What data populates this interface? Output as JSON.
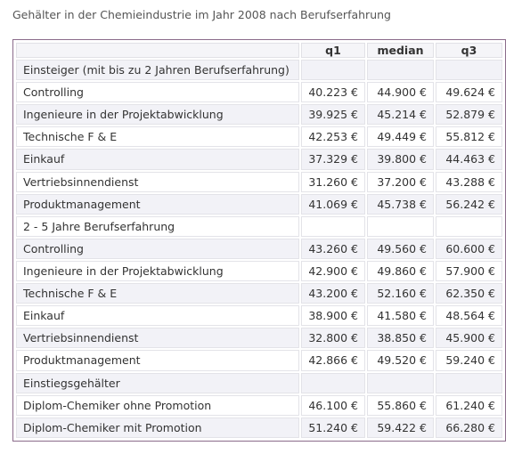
{
  "title": "Gehälter in der Chemieindustrie im Jahr 2008 nach Berufserfahrung",
  "columns": [
    "",
    "q1",
    "median",
    "q3"
  ],
  "rows": [
    {
      "label": "Einsteiger (mit bis zu 2 Jahren Berufserfahrung)",
      "q1": "",
      "median": "",
      "q3": "",
      "section": true
    },
    {
      "label": "Controlling",
      "q1": "40.223 €",
      "median": "44.900 €",
      "q3": "49.624 €"
    },
    {
      "label": "Ingenieure in der Projektabwicklung",
      "q1": "39.925 €",
      "median": "45.214 €",
      "q3": "52.879 €"
    },
    {
      "label": "Technische F & E",
      "q1": "42.253 €",
      "median": "49.449 €",
      "q3": "55.812 €"
    },
    {
      "label": "Einkauf",
      "q1": "37.329 €",
      "median": "39.800 €",
      "q3": "44.463 €"
    },
    {
      "label": "Vertriebsinnendienst",
      "q1": "31.260 €",
      "median": "37.200 €",
      "q3": "43.288 €"
    },
    {
      "label": "Produktmanagement",
      "q1": "41.069 €",
      "median": "45.738 €",
      "q3": "56.242 €"
    },
    {
      "label": "2 - 5 Jahre Berufserfahrung",
      "q1": "",
      "median": "",
      "q3": "",
      "section": true
    },
    {
      "label": "Controlling",
      "q1": "43.260 €",
      "median": "49.560 €",
      "q3": "60.600 €"
    },
    {
      "label": "Ingenieure in der Projektabwicklung",
      "q1": "42.900 €",
      "median": "49.860 €",
      "q3": "57.900 €"
    },
    {
      "label": "Technische F & E",
      "q1": "43.200 €",
      "median": "52.160 €",
      "q3": "62.350 €"
    },
    {
      "label": "Einkauf",
      "q1": "38.900 €",
      "median": "41.580 €",
      "q3": "48.564 €"
    },
    {
      "label": "Vertriebsinnendienst",
      "q1": "32.800 €",
      "median": "38.850 €",
      "q3": "45.900 €"
    },
    {
      "label": "Produktmanagement",
      "q1": "42.866 €",
      "median": "49.520 €",
      "q3": "59.240 €"
    },
    {
      "label": "Einstiegsgehälter",
      "q1": "",
      "median": "",
      "q3": "",
      "section": true
    },
    {
      "label": "Diplom-Chemiker ohne Promotion",
      "q1": "46.100 €",
      "median": "55.860 €",
      "q3": "61.240 €"
    },
    {
      "label": "Diplom-Chemiker mit Promotion",
      "q1": "51.240 €",
      "median": "59.422 €",
      "q3": "66.280 €"
    }
  ]
}
